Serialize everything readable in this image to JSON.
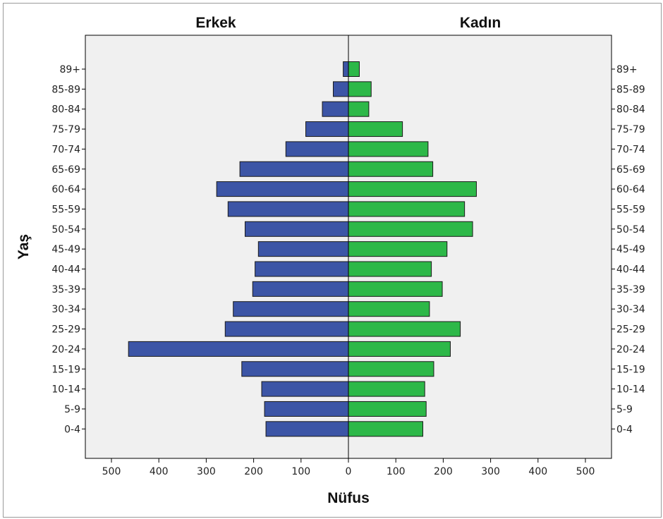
{
  "chart_data": {
    "type": "bar",
    "chart_kind": "population-pyramid",
    "orientation": "horizontal",
    "xlabel": "Nüfus",
    "ylabel": "Yaş",
    "xlim": [
      -550,
      550
    ],
    "x_ticks": [
      -500,
      -400,
      -300,
      -200,
      -100,
      0,
      100,
      200,
      300,
      400,
      500
    ],
    "x_tick_labels": [
      "500",
      "400",
      "300",
      "200",
      "100",
      "0",
      "100",
      "200",
      "300",
      "400",
      "500"
    ],
    "grid": false,
    "background_color": "#f0f0f0",
    "categories": [
      "0-4",
      "5-9",
      "10-14",
      "15-19",
      "20-24",
      "25-29",
      "30-34",
      "35-39",
      "40-44",
      "45-49",
      "50-54",
      "55-59",
      "60-64",
      "65-69",
      "70-74",
      "75-79",
      "80-84",
      "85-89",
      "89+"
    ],
    "series": [
      {
        "name": "Erkek",
        "side": "left",
        "color": "#3c55a6",
        "values": [
          174,
          177,
          183,
          225,
          464,
          260,
          243,
          202,
          197,
          190,
          218,
          254,
          278,
          229,
          132,
          90,
          55,
          32,
          11
        ]
      },
      {
        "name": "Kadın",
        "side": "right",
        "color": "#2db848",
        "values": [
          157,
          164,
          161,
          180,
          215,
          236,
          171,
          198,
          175,
          208,
          262,
          245,
          270,
          178,
          168,
          114,
          43,
          48,
          23
        ]
      }
    ]
  }
}
